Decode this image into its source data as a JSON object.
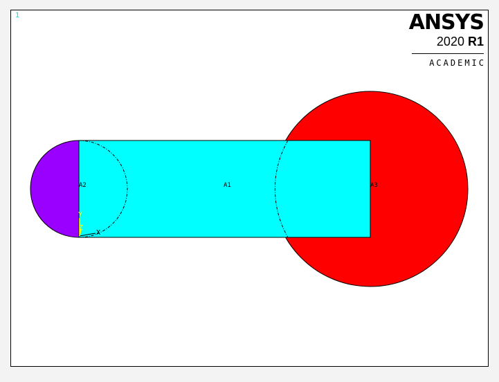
{
  "window": {
    "number": "1"
  },
  "logo": {
    "brand": "ANSYS",
    "version_year": "2020",
    "version_release": "R1",
    "edition": "ACADEMIC"
  },
  "areas": [
    {
      "label": "A1",
      "color": "#00ffff"
    },
    {
      "label": "A2",
      "color": "#9900ff"
    },
    {
      "label": "A3",
      "color": "#ff0000"
    }
  ],
  "triad": {
    "x_label": "X",
    "y_label": "Y",
    "z_label": "Z",
    "x_color": "#000000",
    "y_color": "#ffff00",
    "z_color": "#ffff00"
  },
  "colors": {
    "background": "#ffffff",
    "border": "#000000",
    "window_number": "#00d8d8"
  }
}
